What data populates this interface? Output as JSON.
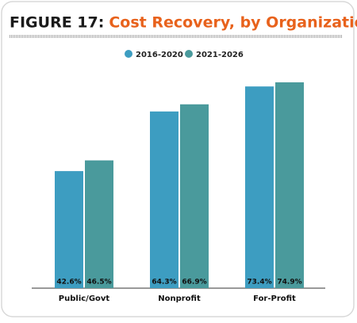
{
  "chart_data": {
    "type": "bar",
    "figure_label": "FIGURE 17:",
    "title": "Cost Recovery, by Organization Type",
    "categories": [
      "Public/Govt",
      "Nonprofit",
      "For-Profit"
    ],
    "series": [
      {
        "name": "2016-2020",
        "color": "#3d9dc1",
        "values": [
          42.6,
          64.3,
          73.4
        ],
        "value_labels": [
          "42.6%",
          "64.3%",
          "73.4%"
        ]
      },
      {
        "name": "2021-2026",
        "color": "#4a9a9c",
        "values": [
          46.5,
          66.9,
          74.9
        ],
        "value_labels": [
          "46.5%",
          "66.9%",
          "74.9%"
        ]
      }
    ]
  }
}
